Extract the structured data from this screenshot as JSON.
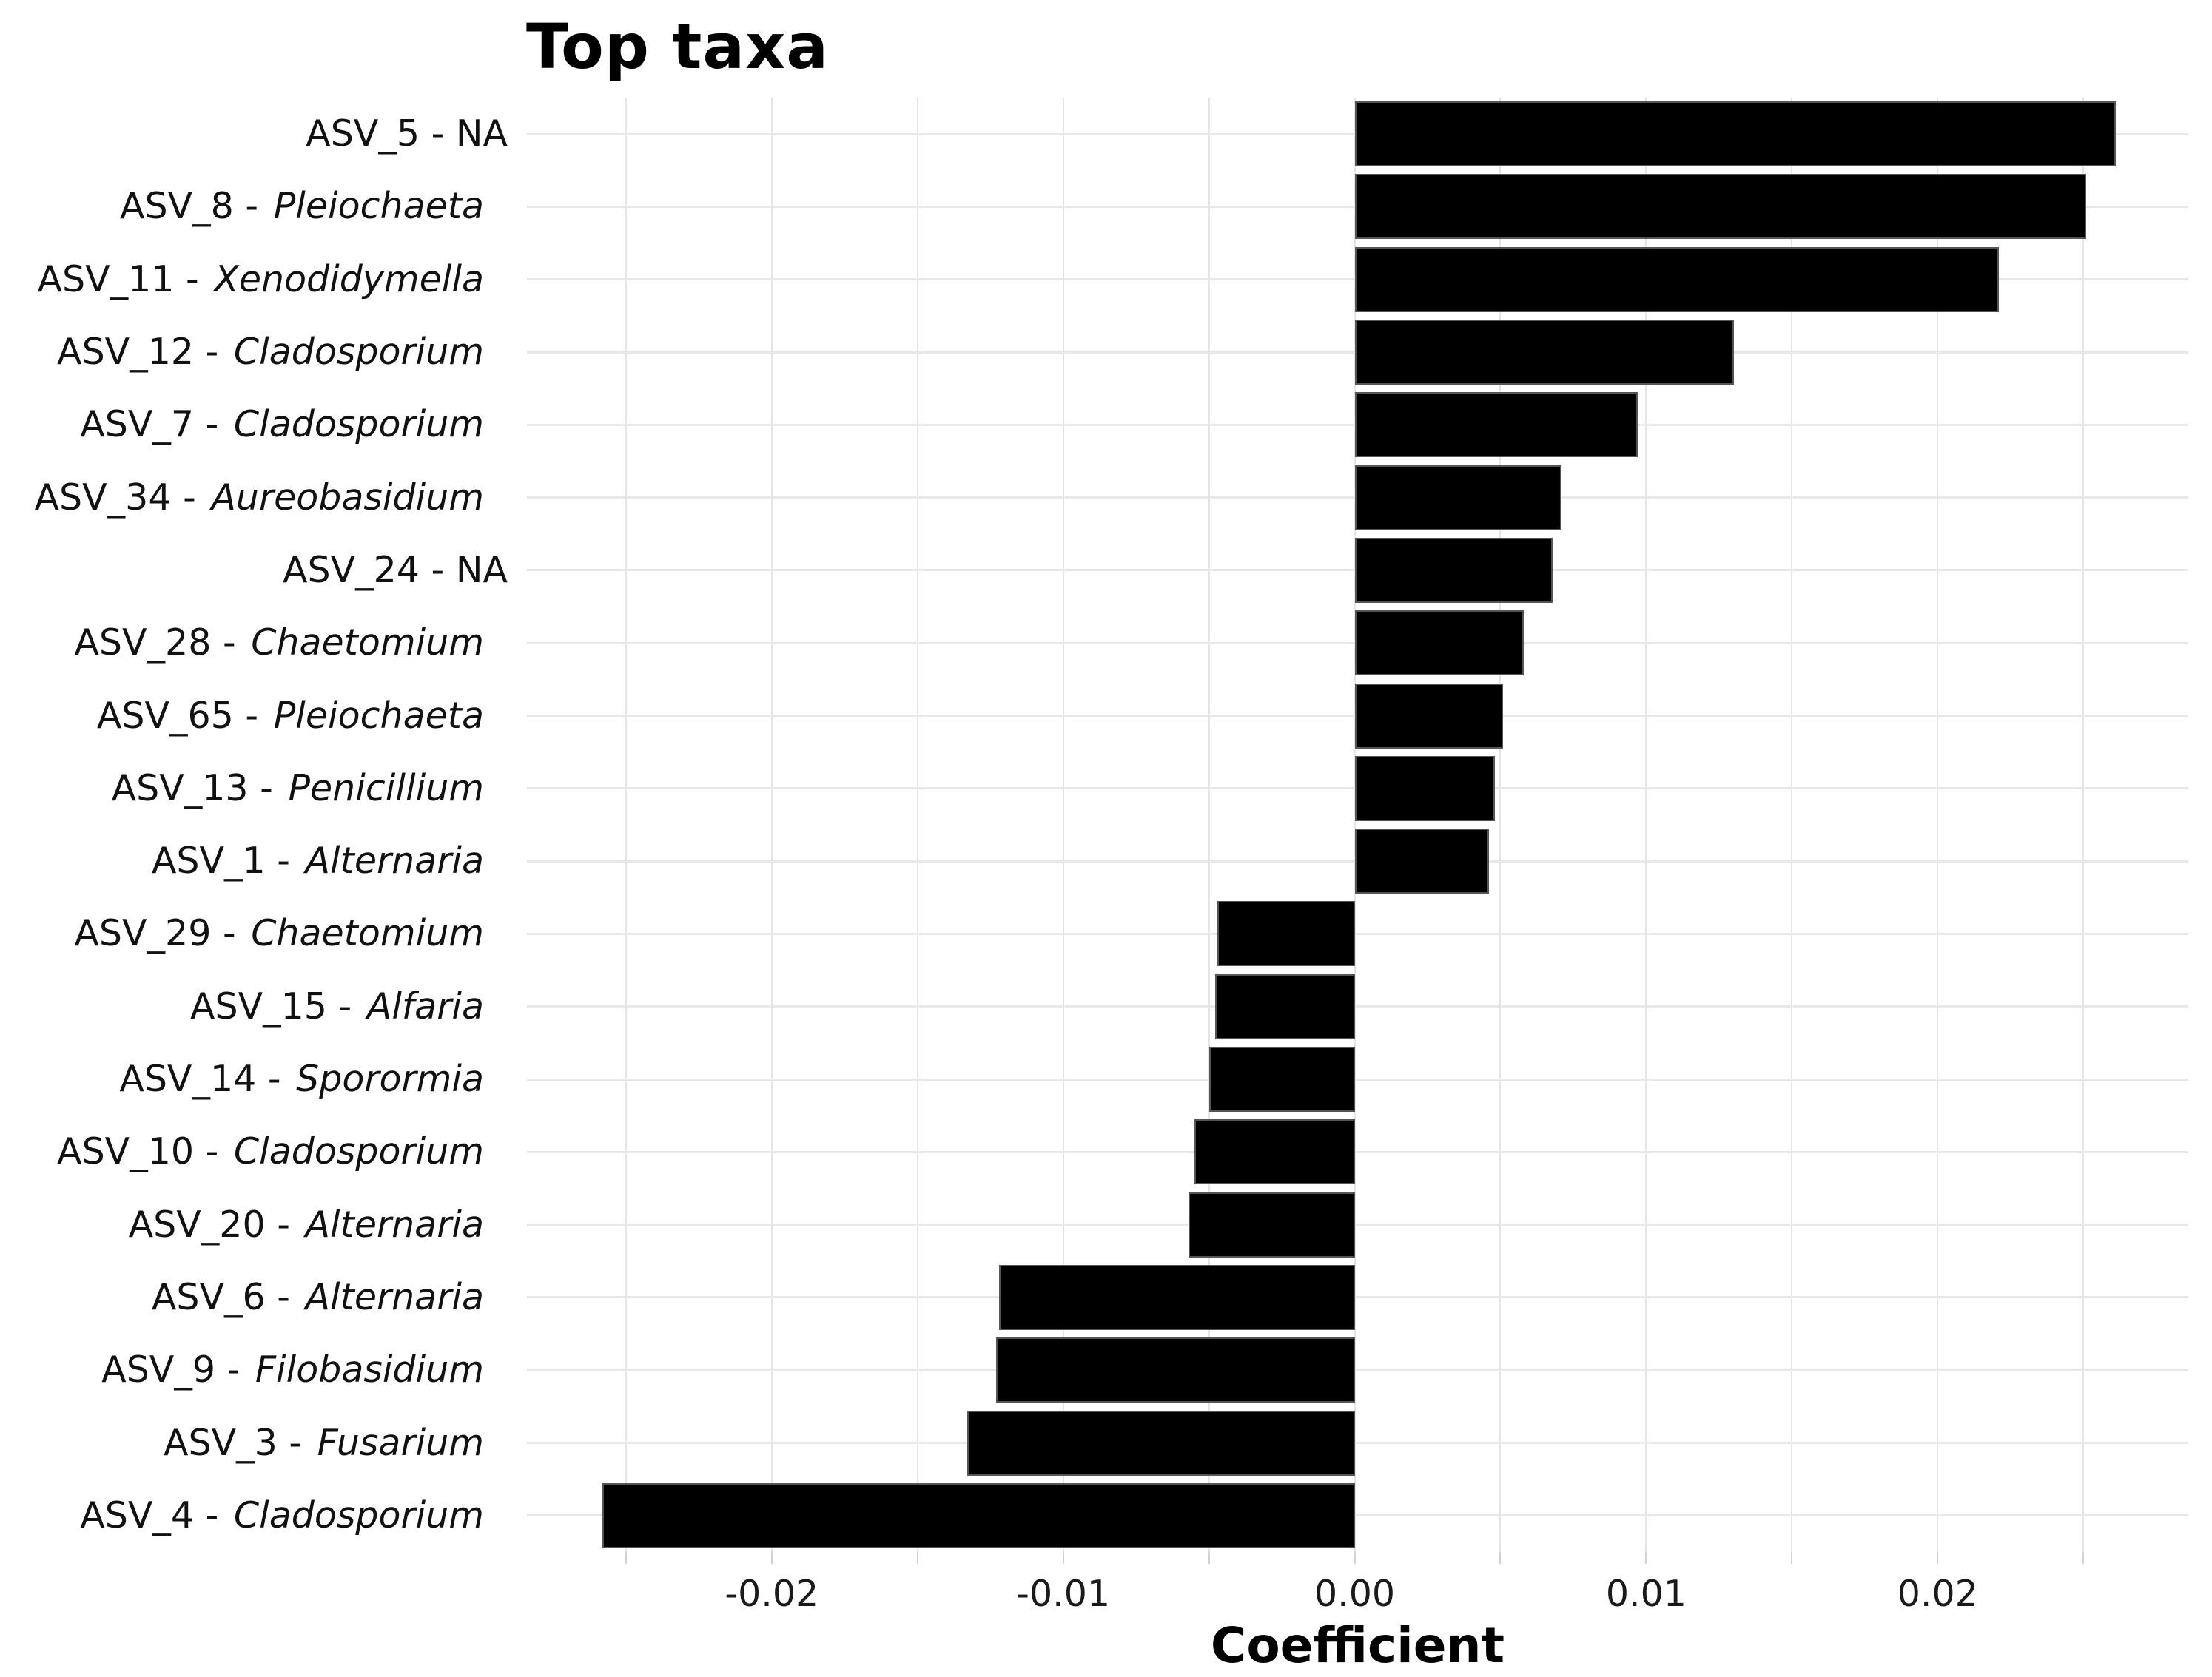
{
  "title": "Top taxa",
  "xlabel": "Coefficient",
  "label_separator": " - ",
  "colors": {
    "background": "#ffffff",
    "bar_fill": "#000000",
    "bar_stroke": "#555555",
    "gridline": "#e6e6e6",
    "tick_stub": "#d2d2d2",
    "text": "#111111"
  },
  "chart_data": {
    "type": "bar",
    "orientation": "horizontal",
    "title": "Top taxa",
    "xlabel": "Coefficient",
    "ylabel": "",
    "xlim": [
      -0.0284,
      0.0286
    ],
    "grid": "on",
    "legend": "none",
    "gridline_values": [
      -0.025,
      -0.02,
      -0.015,
      -0.01,
      -0.005,
      0,
      0.005,
      0.01,
      0.015,
      0.02,
      0.025
    ],
    "x_ticks": [
      {
        "value": -0.02,
        "label": "-0.02"
      },
      {
        "value": -0.01,
        "label": "-0.01"
      },
      {
        "value": 0,
        "label": "0.00"
      },
      {
        "value": 0.01,
        "label": "0.01"
      },
      {
        "value": 0.02,
        "label": "0.02"
      }
    ],
    "bars": [
      {
        "asv": "ASV_5",
        "genus": "NA",
        "italic": false,
        "value": 0.0261
      },
      {
        "asv": "ASV_8",
        "genus": "Pleiochaeta",
        "italic": true,
        "value": 0.0251
      },
      {
        "asv": "ASV_11",
        "genus": "Xenodidymella",
        "italic": true,
        "value": 0.0221
      },
      {
        "asv": "ASV_12",
        "genus": "Cladosporium",
        "italic": true,
        "value": 0.013
      },
      {
        "asv": "ASV_7",
        "genus": "Cladosporium",
        "italic": true,
        "value": 0.0097
      },
      {
        "asv": "ASV_34",
        "genus": "Aureobasidium",
        "italic": true,
        "value": 0.0071
      },
      {
        "asv": "ASV_24",
        "genus": "NA",
        "italic": false,
        "value": 0.0068
      },
      {
        "asv": "ASV_28",
        "genus": "Chaetomium",
        "italic": true,
        "value": 0.0058
      },
      {
        "asv": "ASV_65",
        "genus": "Pleiochaeta",
        "italic": true,
        "value": 0.0051
      },
      {
        "asv": "ASV_13",
        "genus": "Penicillium",
        "italic": true,
        "value": 0.0048
      },
      {
        "asv": "ASV_1",
        "genus": "Alternaria",
        "italic": true,
        "value": 0.0046
      },
      {
        "asv": "ASV_29",
        "genus": "Chaetomium",
        "italic": true,
        "value": -0.0047
      },
      {
        "asv": "ASV_15",
        "genus": "Alfaria",
        "italic": true,
        "value": -0.0048
      },
      {
        "asv": "ASV_14",
        "genus": "Sporormia",
        "italic": true,
        "value": -0.005
      },
      {
        "asv": "ASV_10",
        "genus": "Cladosporium",
        "italic": true,
        "value": -0.0055
      },
      {
        "asv": "ASV_20",
        "genus": "Alternaria",
        "italic": true,
        "value": -0.0057
      },
      {
        "asv": "ASV_6",
        "genus": "Alternaria",
        "italic": true,
        "value": -0.0122
      },
      {
        "asv": "ASV_9",
        "genus": "Filobasidium",
        "italic": true,
        "value": -0.0123
      },
      {
        "asv": "ASV_3",
        "genus": "Fusarium",
        "italic": true,
        "value": -0.0133
      },
      {
        "asv": "ASV_4",
        "genus": "Cladosporium",
        "italic": true,
        "value": -0.0258
      }
    ]
  }
}
